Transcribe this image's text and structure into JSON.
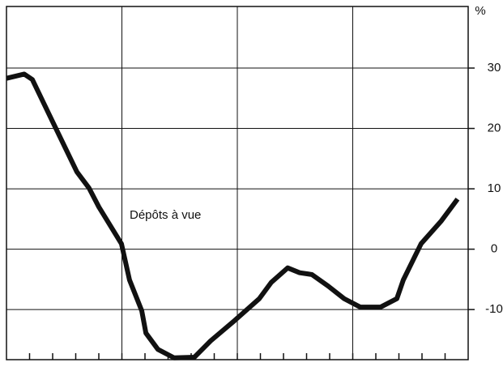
{
  "chart_data": {
    "type": "line",
    "annotation": "Dépôts à vue",
    "y_unit": "%",
    "x": [
      0,
      0.77,
      1.12,
      2,
      3.05,
      3.58,
      4,
      4.98,
      5.33,
      5.86,
      6.04,
      6.56,
      7.26,
      8.14,
      8.84,
      9.89,
      10.95,
      11.47,
      12.18,
      12.7,
      13.23,
      13.93,
      14.63,
      15.33,
      16.2,
      16.91,
      17.19,
      17.96,
      18.84,
      19.54
    ],
    "series": [
      {
        "name": "Dépôts à vue",
        "color": "#111111",
        "values": [
          28.3,
          29,
          28.1,
          21.1,
          12.8,
          10.1,
          7,
          0.9,
          -5.1,
          -10.2,
          -13.9,
          -16.6,
          -18,
          -17.9,
          -15.2,
          -11.8,
          -8.2,
          -5.5,
          -3.1,
          -3.9,
          -4.2,
          -6.1,
          -8.2,
          -9.6,
          -9.6,
          -8.2,
          -5.1,
          0.9,
          4.7,
          8.3
        ]
      }
    ],
    "xlim": [
      0,
      20
    ],
    "xticks": [
      1,
      2,
      3,
      4,
      5,
      6,
      7,
      8,
      9,
      10,
      11,
      12,
      13,
      14,
      15,
      16,
      17,
      18,
      19
    ],
    "xgrid": [
      5,
      10,
      15
    ],
    "ylim": [
      -18.3,
      40.2
    ],
    "yticks": [
      -10,
      0,
      10,
      20,
      30
    ],
    "grid": true
  }
}
